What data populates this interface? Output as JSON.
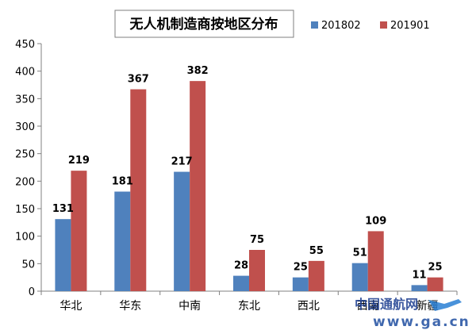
{
  "chart_data": {
    "type": "bar",
    "title": "无人机制造商按地区分布",
    "categories": [
      "华北",
      "华东",
      "中南",
      "东北",
      "西北",
      "西南",
      "新疆"
    ],
    "series": [
      {
        "name": "201802",
        "color": "#4F81BD",
        "values": [
          131,
          181,
          217,
          28,
          25,
          51,
          11
        ]
      },
      {
        "name": "201901",
        "color": "#C0504D",
        "values": [
          219,
          367,
          382,
          75,
          55,
          109,
          25
        ]
      }
    ],
    "ylim": [
      0,
      450
    ],
    "yticks": [
      0,
      50,
      100,
      150,
      200,
      250,
      300,
      350,
      400,
      450
    ],
    "grid": false,
    "legend_position": "top-right"
  },
  "watermark": {
    "line1": "中国通航网",
    "line2": "www.ga.cn"
  }
}
